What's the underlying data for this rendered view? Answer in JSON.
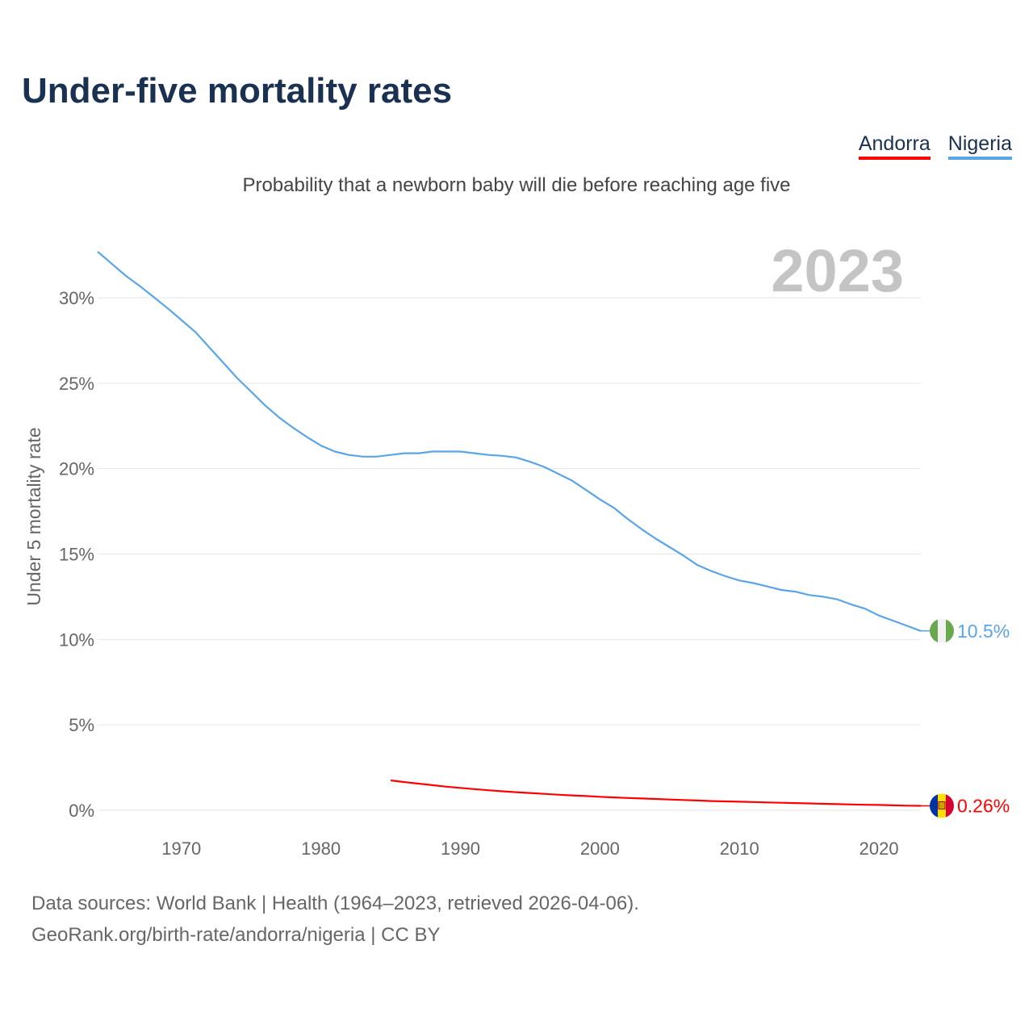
{
  "title": "Under-five mortality rates",
  "subtitle": "Probability that a newborn baby will die before reaching age five",
  "footer": {
    "line1": "Data sources: World Bank | Health (1964–2023, retrieved 2026-04-06).",
    "line2": "GeoRank.org/birth-rate/andorra/nigeria | CC BY"
  },
  "chart_data": {
    "type": "line",
    "title": "Under-five mortality rates",
    "ylabel": "Under 5 mortality rate",
    "xlabel": "",
    "year_label": "2023",
    "xlim": [
      1964,
      2023
    ],
    "ylim": [
      0,
      33
    ],
    "x_ticks": [
      1970,
      1980,
      1990,
      2000,
      2010,
      2020
    ],
    "y_ticks": [
      0,
      5,
      10,
      15,
      20,
      25,
      30
    ],
    "y_tick_labels": [
      "0%",
      "5%",
      "10%",
      "15%",
      "20%",
      "25%",
      "30%"
    ],
    "grid": true,
    "legend_position": "top-right",
    "series": [
      {
        "name": "Andorra",
        "color": "#ff0000",
        "flag": "andorra-flag",
        "end_label": "0.26%",
        "x_start": 1985,
        "values": [
          1.75,
          1.65,
          1.56,
          1.47,
          1.38,
          1.31,
          1.24,
          1.17,
          1.11,
          1.06,
          1.01,
          0.96,
          0.91,
          0.87,
          0.83,
          0.79,
          0.75,
          0.72,
          0.69,
          0.66,
          0.63,
          0.6,
          0.57,
          0.54,
          0.52,
          0.5,
          0.48,
          0.46,
          0.44,
          0.42,
          0.4,
          0.38,
          0.36,
          0.34,
          0.32,
          0.31,
          0.29,
          0.27,
          0.26
        ]
      },
      {
        "name": "Nigeria",
        "color": "#5aa5e8",
        "flag": "nigeria-flag",
        "end_label": "10.5%",
        "x_start": 1964,
        "values": [
          32.7,
          32.0,
          31.3,
          30.7,
          30.05,
          29.4,
          28.7,
          28.0,
          27.1,
          26.2,
          25.3,
          24.5,
          23.7,
          23.0,
          22.4,
          21.85,
          21.35,
          21.0,
          20.8,
          20.7,
          20.7,
          20.8,
          20.9,
          20.9,
          21.0,
          21.0,
          21.0,
          20.9,
          20.8,
          20.75,
          20.65,
          20.4,
          20.1,
          19.7,
          19.3,
          18.75,
          18.2,
          17.7,
          17.05,
          16.45,
          15.9,
          15.4,
          14.9,
          14.35,
          14.0,
          13.7,
          13.45,
          13.3,
          13.1,
          12.9,
          12.8,
          12.6,
          12.5,
          12.35,
          12.05,
          11.8,
          11.4,
          11.1,
          10.8,
          10.5
        ]
      }
    ]
  }
}
